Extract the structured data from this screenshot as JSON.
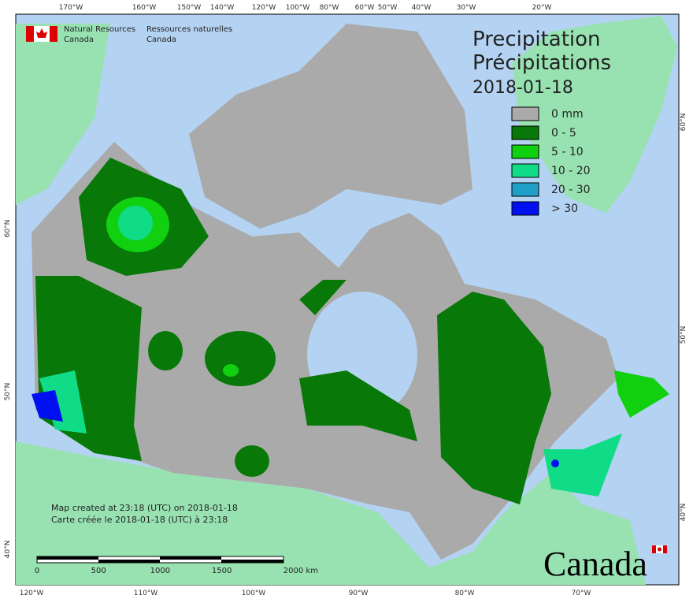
{
  "header": {
    "agency_en": [
      "Natural Resources",
      "Canada"
    ],
    "agency_fr": [
      "Ressources naturelles",
      "Canada"
    ]
  },
  "title": {
    "lines": [
      "Precipitation",
      "Précipitations",
      "2018-01-18"
    ]
  },
  "legend": {
    "items": [
      {
        "label": "0 mm",
        "color": "#aaaaaa"
      },
      {
        "label": "0 - 5",
        "color": "#087808"
      },
      {
        "label": "5 - 10",
        "color": "#10d010"
      },
      {
        "label": "10 - 20",
        "color": "#10dc88"
      },
      {
        "label": "20 - 30",
        "color": "#20a0c8"
      },
      {
        "label": "> 30",
        "color": "#0010f0"
      }
    ]
  },
  "graticule": {
    "top": [
      "170°W",
      "160°W",
      "150°W",
      "140°W",
      "120°W",
      "100°W",
      "80°W",
      "60°W",
      "50°W",
      "40°W",
      "30°W",
      "20°W"
    ],
    "bottom": [
      "120°W",
      "110°W",
      "100°W",
      "90°W",
      "80°W",
      "70°W"
    ],
    "left": [
      "60°N",
      "50°N",
      "40°N"
    ],
    "right": [
      "60°N",
      "50°N",
      "40°N"
    ]
  },
  "note": [
    "Map created at 23:18 (UTC) on 2018-01-18",
    "Carte créée le 2018-01-18 (UTC) à 23:18"
  ],
  "scale": [
    "0",
    "500",
    "1000",
    "1500",
    "2000 km"
  ],
  "wordmark": "Canada"
}
